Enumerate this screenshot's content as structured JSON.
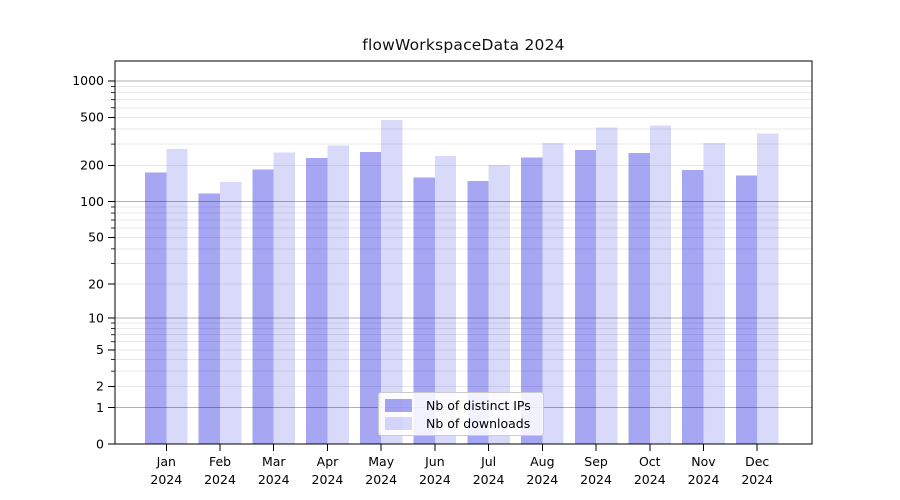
{
  "chart_data": {
    "type": "bar",
    "title": "flowWorkspaceData 2024",
    "categories": [
      "Jan",
      "Feb",
      "Mar",
      "Apr",
      "May",
      "Jun",
      "Jul",
      "Aug",
      "Sep",
      "Oct",
      "Nov",
      "Dec"
    ],
    "year_label": "2024",
    "series": [
      {
        "name": "Nb of distinct IPs",
        "fill": "#0000dd",
        "fill_alpha": 0.35,
        "approx_color": "#a6a6f3",
        "values": [
          174,
          117,
          185,
          229,
          258,
          159,
          148,
          233,
          268,
          252,
          183,
          165
        ]
      },
      {
        "name": "Nb of downloads",
        "fill": "#0000dd",
        "fill_alpha": 0.15,
        "approx_color": "#d9d9f6",
        "values": [
          273,
          146,
          255,
          292,
          475,
          239,
          202,
          305,
          410,
          429,
          305,
          366
        ]
      }
    ],
    "yscale": "log1p",
    "yticks": [
      0,
      1,
      2,
      5,
      10,
      20,
      50,
      100,
      200,
      500,
      1000
    ],
    "ylim": [
      0,
      1460
    ],
    "grid": {
      "major_color": "#b0b0b0",
      "minor_color": "#e9e9e9",
      "minor_levels": [
        2,
        3,
        4,
        5,
        6,
        7,
        8,
        9,
        20,
        30,
        40,
        50,
        60,
        70,
        80,
        90,
        200,
        300,
        400,
        500,
        600,
        700,
        800,
        900
      ]
    },
    "axis_color": "#000000",
    "legend": {
      "position": "lower-center",
      "entries": [
        "Nb of distinct IPs",
        "Nb of downloads"
      ]
    }
  }
}
